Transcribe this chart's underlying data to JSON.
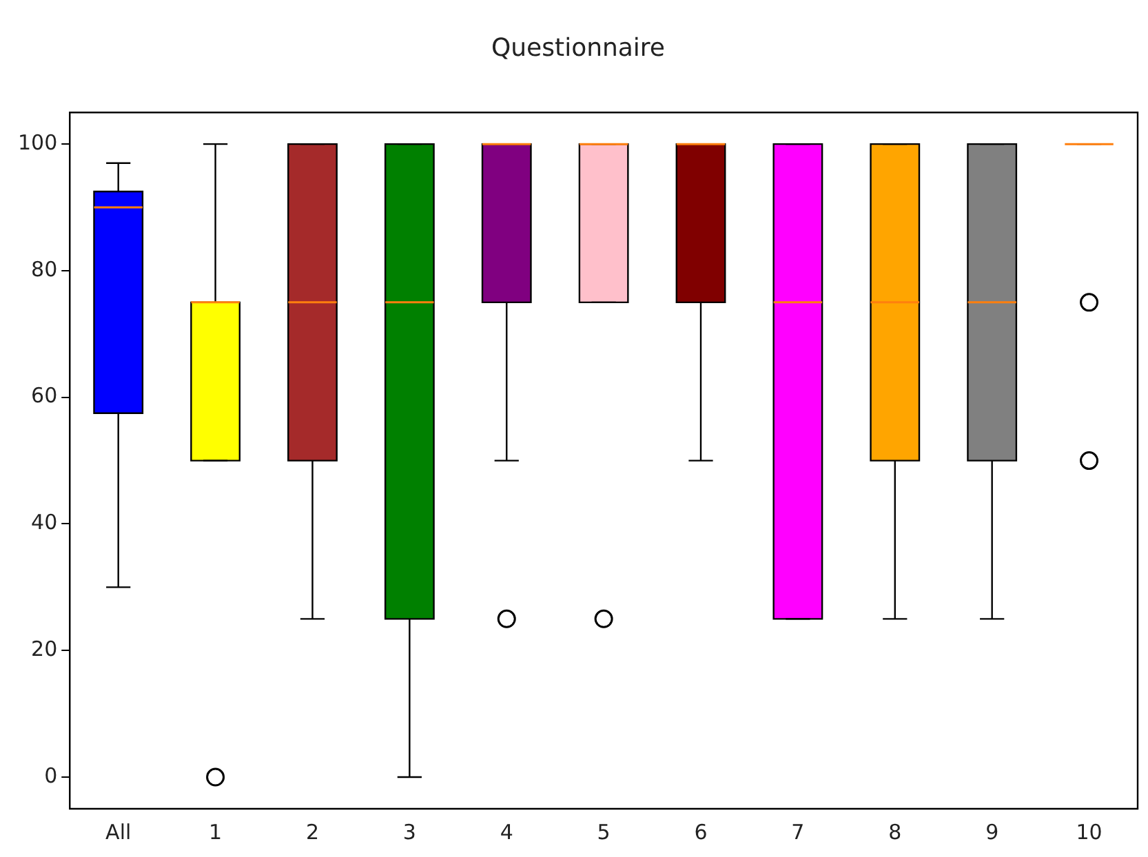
{
  "chart_data": {
    "type": "box",
    "title": "Questionnaire",
    "categories": [
      "All",
      "1",
      "2",
      "3",
      "4",
      "5",
      "6",
      "7",
      "8",
      "9",
      "10"
    ],
    "colors": [
      "#0000ff",
      "#ffff00",
      "#a52a2a",
      "#008000",
      "#800080",
      "#ffc0cb",
      "#800000",
      "#ff00ff",
      "#ffa500",
      "#808080",
      null
    ],
    "boxes": [
      {
        "low": 30,
        "q1": 57.5,
        "median": 90,
        "q3": 92.5,
        "high": 97
      },
      {
        "low": 50,
        "q1": 50,
        "median": 75,
        "q3": 75,
        "high": 100,
        "outliers": [
          0
        ]
      },
      {
        "low": 25,
        "q1": 50,
        "median": 75,
        "q3": 100,
        "high": 100
      },
      {
        "low": 0,
        "q1": 25,
        "median": 75,
        "q3": 100,
        "high": 100
      },
      {
        "low": 50,
        "q1": 75,
        "median": 100,
        "q3": 100,
        "high": 100,
        "outliers": [
          25
        ]
      },
      {
        "low": 75,
        "q1": 75,
        "median": 100,
        "q3": 100,
        "high": 100,
        "outliers": [
          25
        ]
      },
      {
        "low": 50,
        "q1": 75,
        "median": 100,
        "q3": 100,
        "high": 100
      },
      {
        "low": 25,
        "q1": 25,
        "median": 75,
        "q3": 100,
        "high": 100
      },
      {
        "low": 25,
        "q1": 50,
        "median": 75,
        "q3": 100,
        "high": 100
      },
      {
        "low": 25,
        "q1": 50,
        "median": 75,
        "q3": 100,
        "high": 100
      },
      {
        "low": 100,
        "q1": 100,
        "median": 100,
        "q3": 100,
        "high": 100,
        "outliers": [
          75,
          50
        ]
      }
    ],
    "ylim": [
      -5,
      105
    ],
    "yticks": [
      0,
      20,
      40,
      60,
      80,
      100
    ],
    "grid": false
  }
}
